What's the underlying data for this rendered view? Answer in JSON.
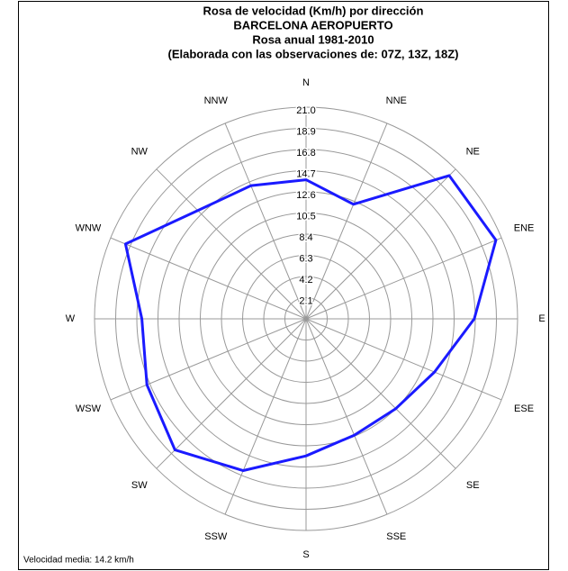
{
  "chart_data": {
    "type": "radar",
    "title": [
      "Rosa de velocidad (Km/h) por dirección",
      "BARCELONA AEROPUERTO",
      "Rosa anual 1981-2010",
      "(Elaborada con las observaciones de: 07Z, 13Z, 18Z)"
    ],
    "categories": [
      "N",
      "NNE",
      "NE",
      "ENE",
      "E",
      "ESE",
      "SE",
      "SSE",
      "S",
      "SSW",
      "SW",
      "WSW",
      "W",
      "WNW",
      "NW",
      "NNW"
    ],
    "series": [
      {
        "color": "#1a1aff",
        "values": [
          13.8,
          12.3,
          20.1,
          20.4,
          16.7,
          13.8,
          12.6,
          12.5,
          13.6,
          16.3,
          18.4,
          17.1,
          16.3,
          19.4,
          15.2,
          14.3
        ]
      }
    ],
    "rlim": [
      0,
      21
    ],
    "rticks": [
      2.1,
      4.2,
      6.3,
      8.4,
      10.5,
      12.6,
      14.7,
      16.8,
      18.9,
      {
        "value": 21,
        "label": "21.0"
      }
    ],
    "footnote": "Velocidad media: 14.2 km/h"
  }
}
